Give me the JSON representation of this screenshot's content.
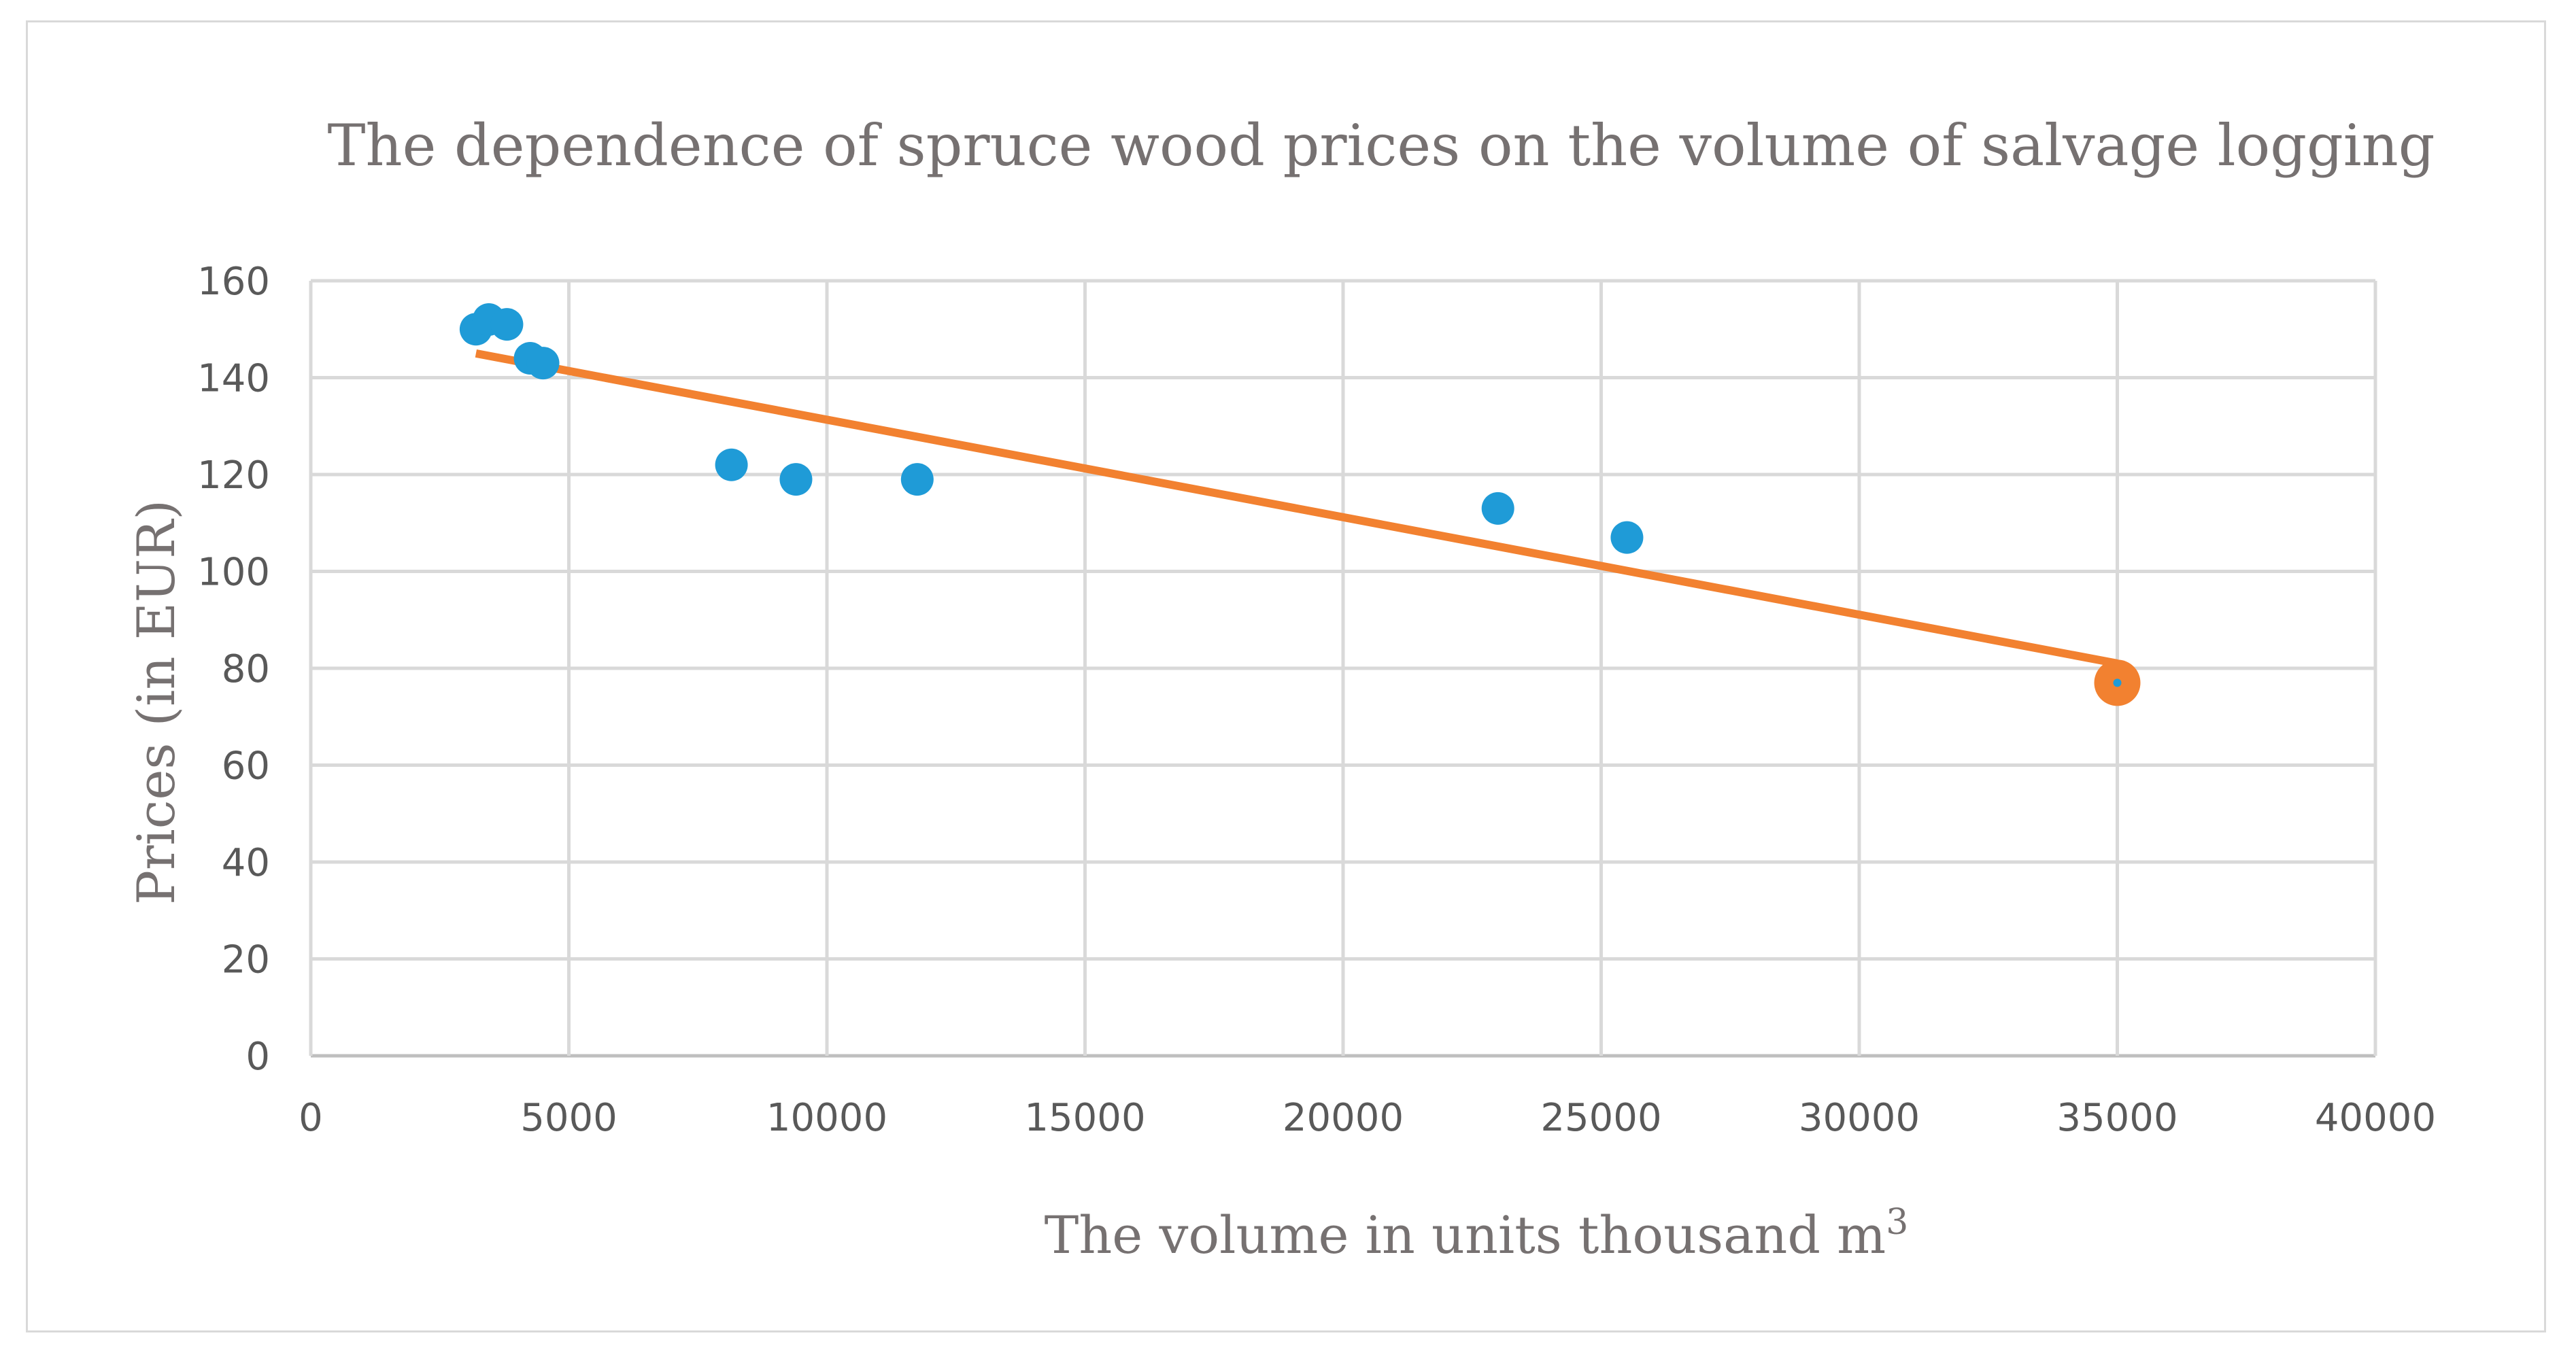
{
  "chart_data": {
    "type": "scatter",
    "title": "The dependence of spruce wood prices on the volume of salvage logging",
    "xlabel": "The volume in units thousand m",
    "xlabel_superscript": "3",
    "ylabel": "Prices (in EUR)",
    "xlim": [
      0,
      40000
    ],
    "ylim": [
      0,
      160
    ],
    "x_ticks": [
      "0",
      "5000",
      "10000",
      "15000",
      "20000",
      "25000",
      "30000",
      "35000",
      "40000"
    ],
    "y_ticks": [
      "0",
      "20",
      "40",
      "60",
      "80",
      "100",
      "120",
      "140",
      "160"
    ],
    "grid": true,
    "colors": {
      "points": "#1f9bd7",
      "trendline": "#f28130"
    },
    "series": [
      {
        "name": "Prices",
        "x": [
          3200,
          3450,
          3800,
          4250,
          4500,
          8150,
          9400,
          11750,
          23000,
          25500,
          35000
        ],
        "y": [
          150,
          152,
          151,
          144,
          143,
          122,
          119,
          119,
          113,
          107,
          77
        ]
      }
    ],
    "trendline": {
      "type": "linear",
      "x": [
        3200,
        35000
      ],
      "y": [
        145,
        81
      ]
    },
    "highlight_point": {
      "x": 35000,
      "y": 77
    }
  }
}
